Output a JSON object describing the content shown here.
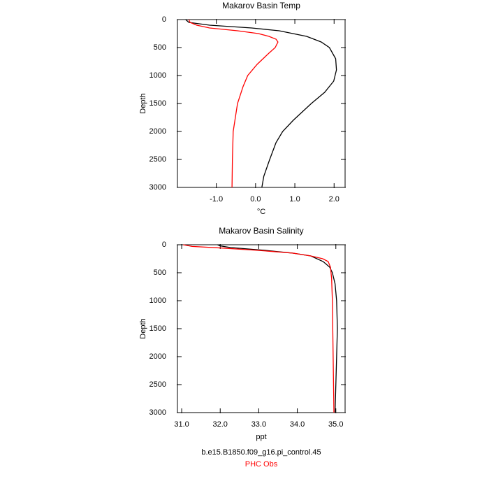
{
  "chart_data": [
    {
      "type": "line",
      "title": "Makarov Basin Temp",
      "xlabel": "°C",
      "ylabel": "Depth",
      "xlim": [
        -1.99,
        2.28
      ],
      "xticks": [
        {
          "value": -1,
          "label": "-1.0"
        },
        {
          "value": 0,
          "label": "0.0"
        },
        {
          "value": 1,
          "label": "1.0"
        },
        {
          "value": 2,
          "label": "2.0"
        }
      ],
      "ylim": [
        3000,
        0
      ],
      "yticks": [
        0,
        500,
        1000,
        1500,
        2000,
        2500,
        3000
      ],
      "series": [
        {
          "color": "#000000",
          "x": [
            -1.78,
            -1.7,
            -1.17,
            -0.1,
            0.6,
            1.3,
            1.67,
            1.88,
            2.04,
            2.06,
            1.99,
            1.76,
            1.42,
            0.96,
            0.69,
            0.52,
            0.36,
            0.21,
            0.16
          ],
          "y": [
            0,
            50,
            100,
            150,
            200,
            300,
            400,
            500,
            700,
            900,
            1100,
            1300,
            1500,
            1800,
            2000,
            2200,
            2500,
            2800,
            3000
          ]
        },
        {
          "color": "#ff0000",
          "x": [
            -1.7,
            -1.67,
            -1.5,
            -1.17,
            -0.46,
            0.07,
            0.34,
            0.52,
            0.57,
            0.5,
            0.34,
            0.04,
            -0.2,
            -0.32,
            -0.46,
            -0.57,
            -0.59,
            -0.6
          ],
          "y": [
            0,
            50,
            100,
            150,
            200,
            250,
            300,
            350,
            400,
            500,
            600,
            800,
            1000,
            1200,
            1500,
            2000,
            2500,
            3000
          ]
        }
      ]
    },
    {
      "type": "line",
      "title": "Makarov Basin Salinity",
      "xlabel": "ppt",
      "ylabel": "Depth",
      "xlim": [
        30.89,
        35.24
      ],
      "xticks": [
        {
          "value": 31,
          "label": "31.0"
        },
        {
          "value": 32,
          "label": "32.0"
        },
        {
          "value": 33,
          "label": "33.0"
        },
        {
          "value": 34,
          "label": "34.0"
        },
        {
          "value": 35,
          "label": "35.0"
        }
      ],
      "ylim": [
        3000,
        0
      ],
      "yticks": [
        0,
        500,
        1000,
        1500,
        2000,
        2500,
        3000
      ],
      "series": [
        {
          "color": "#000000",
          "x": [
            31.93,
            32.0,
            32.27,
            33.17,
            33.89,
            34.35,
            34.67,
            34.84,
            34.91,
            34.98,
            35.02,
            35.04,
            35.02,
            35.0,
            34.98
          ],
          "y": [
            0,
            20,
            50,
            100,
            150,
            200,
            300,
            400,
            500,
            700,
            1000,
            1500,
            2000,
            2500,
            3000
          ]
        },
        {
          "color": "#ff0000",
          "x": [
            31.04,
            31.27,
            32.08,
            32.98,
            33.89,
            34.35,
            34.66,
            34.8,
            34.86,
            34.89,
            34.91,
            34.93,
            34.95
          ],
          "y": [
            0,
            30,
            60,
            100,
            150,
            200,
            250,
            300,
            400,
            600,
            1000,
            2000,
            3000
          ]
        }
      ]
    }
  ],
  "legend": [
    {
      "name": "b.e15.B1850.f09_g16.pi_control.45",
      "color": "#000000"
    },
    {
      "name": "PHC Obs",
      "color": "#ff0000"
    }
  ]
}
